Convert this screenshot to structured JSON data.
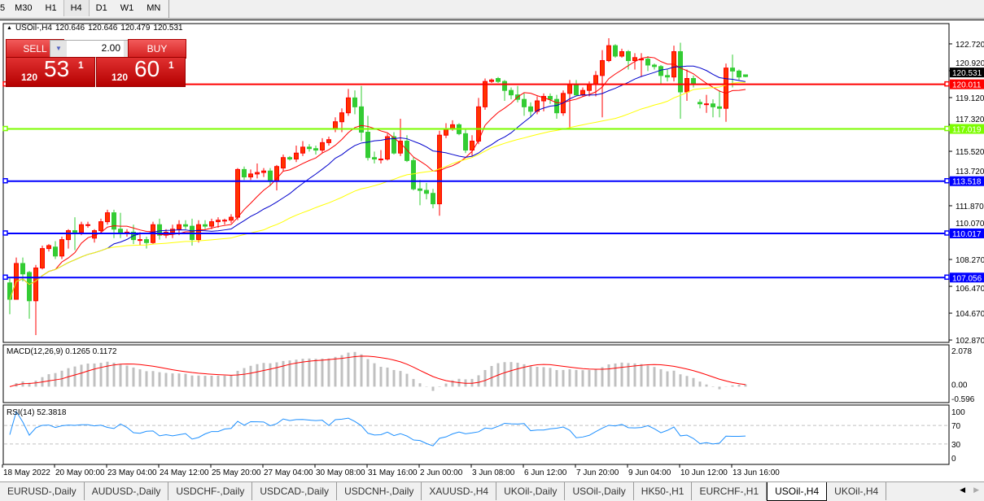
{
  "timeframes": [
    {
      "label": "5",
      "active": false
    },
    {
      "label": "M30",
      "active": false
    },
    {
      "label": "H1",
      "active": false
    },
    {
      "label": "H4",
      "active": true
    },
    {
      "label": "D1",
      "active": false
    },
    {
      "label": "W1",
      "active": false
    },
    {
      "label": "MN",
      "active": false
    }
  ],
  "chart_header": {
    "symbol": "USOil-,H4",
    "open": "120.646",
    "high": "120.646",
    "low": "120.479",
    "close": "120.531"
  },
  "one_click": {
    "sell_label": "SELL",
    "buy_label": "BUY",
    "lot": "2.00",
    "sell_prefix": "120",
    "sell_big": "53",
    "sell_sup": "1",
    "buy_prefix": "120",
    "buy_big": "60",
    "buy_sup": "1"
  },
  "tabs": [
    {
      "label": "EURUSD-,Daily",
      "active": false
    },
    {
      "label": "AUDUSD-,Daily",
      "active": false
    },
    {
      "label": "USDCHF-,Daily",
      "active": false
    },
    {
      "label": "USDCAD-,Daily",
      "active": false
    },
    {
      "label": "USDCNH-,Daily",
      "active": false
    },
    {
      "label": "XAUUSD-,H4",
      "active": false
    },
    {
      "label": "UKOil-,Daily",
      "active": false
    },
    {
      "label": "USOil-,Daily",
      "active": false
    },
    {
      "label": "HK50-,H1",
      "active": false
    },
    {
      "label": "EURCHF-,H1",
      "active": false
    },
    {
      "label": "USOil-,H4",
      "active": true
    },
    {
      "label": "UKOil-,H4",
      "active": false
    }
  ],
  "colors": {
    "bull": "#ff0000",
    "bull_fill": "#ff3300",
    "bear": "#33cc33",
    "ma_fast": "#ff0000",
    "ma_mid": "#0000cc",
    "ma_slow": "#ffff00",
    "macd_hist": "#c0c0c0",
    "macd_signal": "#ff0000",
    "rsi": "#1e90ff"
  },
  "chart_data": {
    "type": "candlestick",
    "ylim": [
      102.71,
      124.08
    ],
    "price_ticks": [
      "122.720",
      "120.920",
      "119.120",
      "117.320",
      "115.520",
      "113.720",
      "111.870",
      "110.070",
      "108.270",
      "106.470",
      "104.670",
      "102.870"
    ],
    "current_price": "120.531",
    "hlines": [
      {
        "value": "120.011",
        "color": "#ff0000"
      },
      {
        "value": "117.019",
        "color": "#7cfc00"
      },
      {
        "value": "113.518",
        "color": "#0000ff"
      },
      {
        "value": "110.017",
        "color": "#0000ff"
      },
      {
        "value": "107.056",
        "color": "#0000ff"
      }
    ],
    "time_labels": [
      "18 May 2022",
      "20 May 00:00",
      "23 May 04:00",
      "24 May 12:00",
      "25 May 20:00",
      "27 May 04:00",
      "30 May 08:00",
      "31 May 16:00",
      "2 Jun 00:00",
      "3 Jun 08:00",
      "6 Jun 12:00",
      "7 Jun 20:00",
      "9 Jun 04:00",
      "10 Jun 12:00",
      "13 Jun 16:00"
    ],
    "ohlc": [
      [
        106.7,
        107.0,
        104.6,
        105.6
      ],
      [
        105.6,
        108.4,
        105.6,
        108.0
      ],
      [
        108.0,
        108.4,
        106.8,
        107.3
      ],
      [
        107.4,
        107.5,
        104.3,
        105.5
      ],
      [
        105.5,
        107.9,
        103.2,
        107.7
      ],
      [
        107.7,
        109.2,
        107.6,
        109.0
      ],
      [
        109.0,
        109.3,
        108.8,
        109.2
      ],
      [
        109.1,
        109.5,
        108.3,
        108.5
      ],
      [
        108.5,
        109.8,
        108.3,
        109.6
      ],
      [
        109.6,
        110.3,
        109.0,
        110.2
      ],
      [
        110.2,
        111.1,
        108.9,
        110.1
      ],
      [
        110.1,
        110.8,
        109.9,
        110.6
      ],
      [
        110.6,
        110.8,
        110.4,
        110.6
      ],
      [
        109.7,
        110.3,
        109.4,
        110.2
      ],
      [
        110.2,
        111.0,
        110.0,
        110.8
      ],
      [
        110.8,
        111.6,
        110.6,
        111.4
      ],
      [
        111.4,
        111.6,
        109.7,
        110.3
      ],
      [
        110.3,
        111.4,
        109.7,
        110.0
      ],
      [
        110.0,
        110.3,
        109.8,
        110.1
      ],
      [
        110.1,
        110.6,
        109.3,
        109.6
      ],
      [
        109.6,
        110.1,
        109.2,
        109.6
      ],
      [
        109.6,
        109.8,
        109.0,
        109.4
      ],
      [
        109.4,
        110.8,
        109.3,
        110.6
      ],
      [
        110.6,
        111.0,
        109.6,
        109.9
      ],
      [
        109.9,
        110.3,
        109.7,
        110.1
      ],
      [
        110.1,
        110.6,
        109.7,
        110.3
      ],
      [
        110.3,
        110.9,
        109.9,
        110.6
      ],
      [
        110.6,
        110.9,
        110.3,
        110.5
      ],
      [
        110.5,
        111.0,
        109.2,
        109.6
      ],
      [
        109.6,
        110.9,
        109.4,
        110.6
      ],
      [
        110.6,
        110.9,
        110.3,
        110.5
      ],
      [
        110.5,
        111.0,
        110.3,
        110.8
      ],
      [
        110.8,
        111.1,
        110.4,
        110.9
      ],
      [
        110.9,
        111.0,
        110.6,
        110.9
      ],
      [
        110.9,
        111.3,
        110.7,
        111.1
      ],
      [
        111.1,
        114.4,
        110.9,
        114.3
      ],
      [
        114.3,
        114.5,
        113.6,
        113.8
      ],
      [
        113.8,
        114.3,
        113.6,
        114.0
      ],
      [
        114.0,
        114.7,
        113.7,
        114.1
      ],
      [
        114.1,
        114.4,
        113.8,
        114.2
      ],
      [
        114.2,
        114.4,
        113.2,
        113.5
      ],
      [
        113.5,
        114.6,
        112.9,
        114.5
      ],
      [
        114.4,
        115.3,
        114.2,
        115.1
      ],
      [
        115.1,
        115.2,
        114.9,
        115.0
      ],
      [
        115.0,
        115.9,
        114.8,
        115.4
      ],
      [
        115.4,
        116.2,
        115.2,
        115.8
      ],
      [
        115.8,
        116.0,
        115.5,
        115.7
      ],
      [
        115.7,
        115.9,
        115.3,
        115.6
      ],
      [
        115.6,
        116.4,
        115.4,
        116.1
      ],
      [
        116.1,
        116.5,
        115.9,
        116.3
      ],
      [
        117.0,
        117.8,
        116.8,
        117.5
      ],
      [
        117.5,
        118.4,
        116.8,
        118.1
      ],
      [
        118.1,
        119.7,
        117.9,
        119.1
      ],
      [
        119.1,
        119.6,
        118.0,
        118.5
      ],
      [
        118.5,
        119.9,
        116.2,
        116.8
      ],
      [
        116.8,
        117.9,
        114.9,
        115.1
      ],
      [
        115.1,
        115.5,
        114.7,
        115.0
      ],
      [
        115.0,
        115.6,
        114.7,
        115.0
      ],
      [
        115.0,
        116.7,
        114.9,
        116.5
      ],
      [
        116.5,
        116.8,
        115.3,
        115.4
      ],
      [
        115.4,
        117.7,
        115.2,
        116.2
      ],
      [
        116.2,
        116.6,
        114.8,
        114.9
      ],
      [
        114.9,
        115.1,
        112.9,
        113.0
      ],
      [
        113.0,
        113.6,
        111.9,
        112.9
      ],
      [
        112.9,
        113.4,
        112.3,
        112.7
      ],
      [
        112.7,
        113.0,
        111.7,
        112.0
      ],
      [
        112.0,
        116.9,
        111.2,
        116.6
      ],
      [
        116.6,
        117.4,
        116.4,
        117.0
      ],
      [
        117.0,
        117.6,
        116.9,
        117.3
      ],
      [
        117.3,
        117.4,
        116.6,
        116.7
      ],
      [
        116.7,
        117.0,
        115.4,
        115.6
      ],
      [
        115.6,
        116.6,
        115.2,
        116.2
      ],
      [
        116.2,
        119.1,
        116.0,
        118.5
      ],
      [
        118.5,
        120.4,
        118.3,
        120.2
      ],
      [
        120.2,
        120.4,
        120.1,
        120.3
      ],
      [
        120.4,
        120.5,
        120.1,
        120.2
      ],
      [
        120.2,
        120.3,
        118.9,
        119.6
      ],
      [
        119.6,
        119.8,
        119.0,
        119.3
      ],
      [
        119.3,
        119.9,
        118.8,
        119.0
      ],
      [
        119.0,
        119.4,
        117.9,
        118.5
      ],
      [
        118.5,
        118.8,
        117.8,
        118.2
      ],
      [
        118.2,
        119.2,
        118.0,
        118.9
      ],
      [
        118.9,
        119.4,
        118.2,
        119.2
      ],
      [
        119.2,
        119.4,
        118.7,
        119.0
      ],
      [
        119.0,
        119.3,
        117.7,
        118.1
      ],
      [
        118.1,
        119.6,
        117.9,
        119.4
      ],
      [
        119.4,
        120.3,
        117.0,
        120.0
      ],
      [
        120.0,
        120.3,
        119.2,
        119.3
      ],
      [
        119.3,
        119.8,
        119.2,
        119.6
      ],
      [
        119.6,
        120.2,
        119.2,
        120.0
      ],
      [
        120.0,
        120.9,
        119.2,
        120.6
      ],
      [
        120.6,
        122.3,
        117.8,
        121.6
      ],
      [
        121.6,
        123.1,
        121.5,
        122.6
      ],
      [
        122.6,
        122.7,
        121.8,
        121.9
      ],
      [
        121.9,
        122.4,
        121.8,
        122.2
      ],
      [
        122.2,
        122.3,
        121.0,
        121.6
      ],
      [
        121.6,
        122.1,
        121.0,
        121.8
      ],
      [
        121.7,
        122.1,
        120.5,
        121.7
      ],
      [
        121.7,
        121.9,
        120.9,
        121.3
      ],
      [
        121.3,
        121.4,
        121.0,
        121.2
      ],
      [
        121.2,
        121.3,
        120.0,
        120.6
      ],
      [
        120.6,
        121.0,
        120.2,
        120.5
      ],
      [
        120.5,
        122.6,
        120.2,
        122.2
      ],
      [
        122.2,
        122.8,
        117.7,
        119.5
      ],
      [
        119.5,
        121.0,
        118.9,
        120.4
      ],
      [
        120.4,
        120.6,
        119.8,
        120.0
      ],
      [
        118.8,
        119.0,
        118.4,
        118.7
      ],
      [
        118.7,
        119.3,
        118.1,
        118.7
      ],
      [
        118.7,
        119.0,
        117.8,
        118.5
      ],
      [
        118.5,
        119.6,
        117.8,
        118.4
      ],
      [
        118.4,
        121.4,
        117.5,
        121.1
      ],
      [
        121.1,
        122.0,
        119.8,
        120.9
      ],
      [
        120.9,
        121.0,
        120.3,
        120.5
      ],
      [
        120.646,
        120.646,
        120.479,
        120.531
      ]
    ],
    "macd": {
      "label": "MACD(12,26,9) 0.1265 0.1172",
      "ticks": [
        "2.078",
        "0.00",
        "-0.596"
      ],
      "ylim": [
        -0.596,
        2.078
      ]
    },
    "rsi": {
      "label": "RSI(14) 52.3818",
      "ticks": [
        "100",
        "70",
        "30",
        "0"
      ],
      "levels": [
        70,
        30
      ],
      "ylim": [
        0,
        100
      ]
    }
  }
}
